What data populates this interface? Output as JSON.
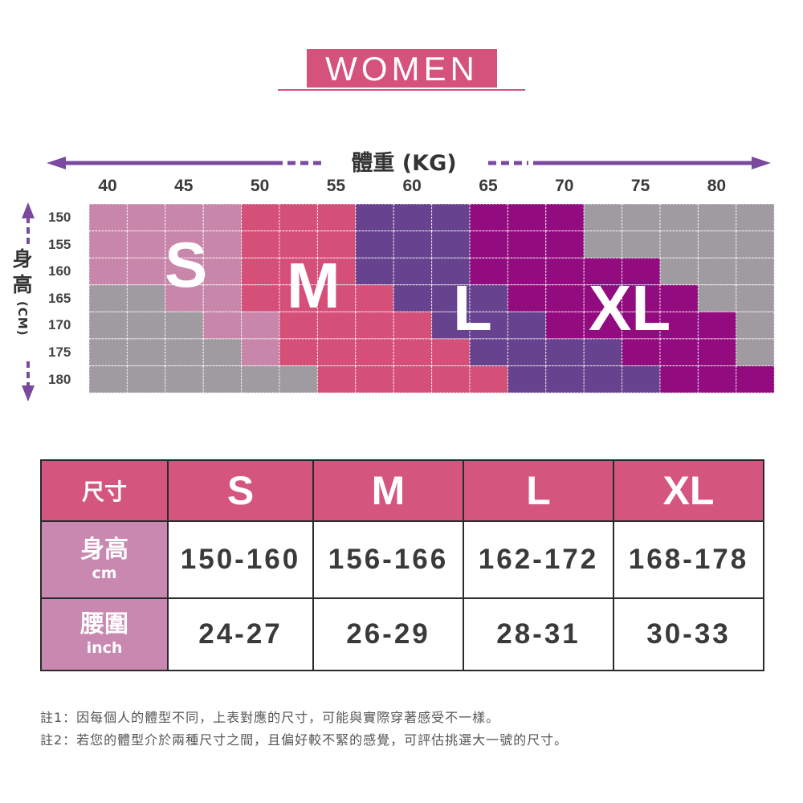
{
  "title": "WOMEN",
  "chart_data": {
    "type": "heatmap",
    "xlabel": "體重 (KG)",
    "ylabel_main": "身高",
    "ylabel_unit": "(CM)",
    "x_ticks": [
      40,
      45,
      50,
      55,
      60,
      65,
      70,
      75,
      80
    ],
    "y_ticks": [
      150,
      155,
      160,
      165,
      170,
      175,
      180
    ],
    "x_columns": [
      40,
      42.5,
      45,
      47.5,
      50,
      52.5,
      55,
      57.5,
      60,
      62.5,
      65,
      67.5,
      70,
      72.5,
      75,
      77.5,
      80,
      82.5
    ],
    "y_rows": [
      150,
      155,
      160,
      165,
      170,
      175,
      180
    ],
    "legend": {
      "S": "#c886ab",
      "M": "#d45079",
      "L": "#67428e",
      "XL": "#920c7f",
      "none": "#a09aa1"
    },
    "grid": [
      [
        "S",
        "S",
        "S",
        "S",
        "M",
        "M",
        "M",
        "L",
        "L",
        "L",
        "XL",
        "XL",
        "XL",
        "none",
        "none",
        "none",
        "none",
        "none"
      ],
      [
        "S",
        "S",
        "S",
        "S",
        "M",
        "M",
        "M",
        "L",
        "L",
        "L",
        "XL",
        "XL",
        "XL",
        "none",
        "none",
        "none",
        "none",
        "none"
      ],
      [
        "S",
        "S",
        "S",
        "S",
        "M",
        "M",
        "M",
        "L",
        "L",
        "L",
        "XL",
        "XL",
        "XL",
        "XL",
        "XL",
        "none",
        "none",
        "none"
      ],
      [
        "none",
        "none",
        "S",
        "S",
        "M",
        "M",
        "M",
        "M",
        "L",
        "L",
        "L",
        "XL",
        "XL",
        "XL",
        "XL",
        "XL",
        "none",
        "none"
      ],
      [
        "none",
        "none",
        "none",
        "S",
        "S",
        "M",
        "M",
        "M",
        "M",
        "L",
        "L",
        "L",
        "XL",
        "XL",
        "XL",
        "XL",
        "XL",
        "none"
      ],
      [
        "none",
        "none",
        "none",
        "none",
        "S",
        "M",
        "M",
        "M",
        "M",
        "M",
        "L",
        "L",
        "L",
        "L",
        "XL",
        "XL",
        "XL",
        "none"
      ],
      [
        "none",
        "none",
        "none",
        "none",
        "none",
        "none",
        "M",
        "M",
        "M",
        "M",
        "M",
        "L",
        "L",
        "L",
        "L",
        "XL",
        "XL",
        "XL"
      ]
    ],
    "size_labels": [
      "S",
      "M",
      "L",
      "XL"
    ]
  },
  "table": {
    "header_label": "尺寸",
    "sizes": [
      "S",
      "M",
      "L",
      "XL"
    ],
    "rows": [
      {
        "label": "身高",
        "unit": "cm",
        "values": [
          "150-160",
          "156-166",
          "162-172",
          "168-178"
        ]
      },
      {
        "label": "腰圍",
        "unit": "inch",
        "values": [
          "24-27",
          "26-29",
          "28-31",
          "30-33"
        ]
      }
    ]
  },
  "notes": [
    "註1：因每個人的體型不同，上表對應的尺寸，可能與實際穿著感受不一樣。",
    "註2：若您的體型介於兩種尺寸之間，且偏好較不緊的感覺，可評估挑選大一號的尺寸。"
  ],
  "colors": {
    "accent": "#d4527b",
    "arrow": "#7b4a9e"
  }
}
